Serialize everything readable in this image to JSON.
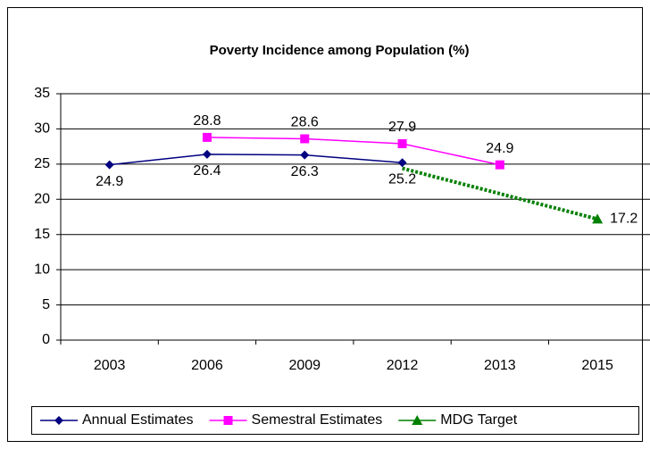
{
  "chart_data": {
    "type": "line",
    "title": "Poverty Incidence among Population (%)",
    "categories": [
      "2003",
      "2006",
      "2009",
      "2012",
      "2013",
      "2015"
    ],
    "series": [
      {
        "name": "Annual Estimates",
        "color": "#000080",
        "marker": "diamond",
        "label_position": "below",
        "dash": "solid",
        "values": [
          24.9,
          26.4,
          26.3,
          25.2,
          null,
          null
        ],
        "markers": [
          true,
          true,
          true,
          true,
          true,
          true
        ]
      },
      {
        "name": "Semestral Estimates",
        "color": "#ff00ff",
        "marker": "square",
        "label_position": "above",
        "dash": "solid",
        "values": [
          null,
          28.8,
          28.6,
          27.9,
          24.9,
          null
        ],
        "markers": [
          true,
          true,
          true,
          true,
          true,
          true
        ]
      },
      {
        "name": "MDG Target",
        "color": "#008000",
        "marker": "triangle",
        "label_position": "right",
        "dash": "dotted",
        "values": [
          null,
          null,
          null,
          24.4,
          20.8,
          17.2
        ],
        "markers": [
          false,
          false,
          false,
          false,
          false,
          true
        ],
        "labels": [
          false,
          false,
          false,
          false,
          false,
          true
        ]
      }
    ],
    "ylim": [
      0,
      35
    ],
    "yticks": [
      0,
      5,
      10,
      15,
      20,
      25,
      30,
      35
    ],
    "grid": true,
    "legend": "bottom"
  }
}
